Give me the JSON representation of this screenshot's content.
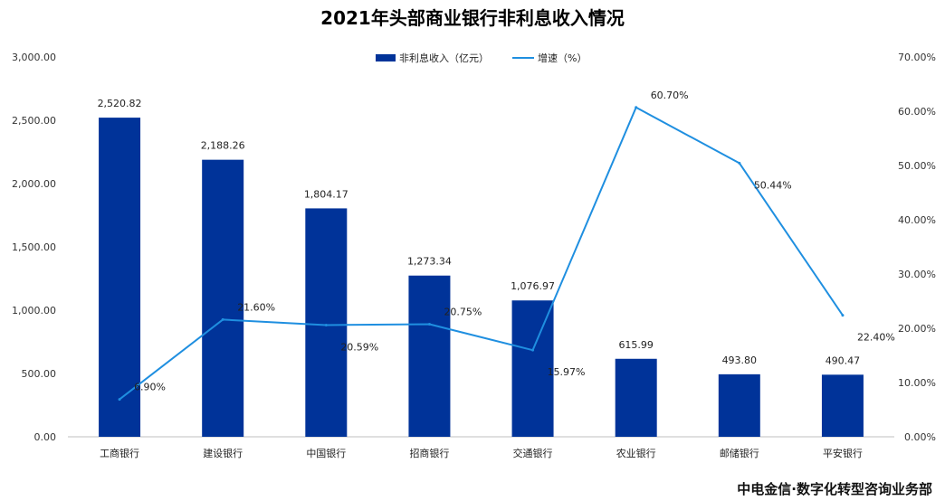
{
  "chart_data": {
    "type": "bar",
    "title": "2021年头部商业银行非利息收入情况",
    "categories": [
      "工商银行",
      "建设银行",
      "中国银行",
      "招商银行",
      "交通银行",
      "农业银行",
      "邮储银行",
      "平安银行"
    ],
    "series": [
      {
        "name": "非利息收入（亿元）",
        "type": "bar",
        "axis": "left",
        "color": "#003399",
        "values": [
          2520.82,
          2188.26,
          1804.17,
          1273.34,
          1076.97,
          615.99,
          493.8,
          490.47
        ],
        "labels": [
          "2,520.82",
          "2,188.26",
          "1,804.17",
          "1,273.34",
          "1,076.97",
          "615.99",
          "493.80",
          "490.47"
        ]
      },
      {
        "name": "增速（%）",
        "type": "line",
        "axis": "right",
        "color": "#1f8fe0",
        "values": [
          6.9,
          21.6,
          20.59,
          20.75,
          15.97,
          60.7,
          50.44,
          22.4
        ],
        "labels": [
          "6.90%",
          "21.60%",
          "20.59%",
          "20.75%",
          "15.97%",
          "60.70%",
          "50.44%",
          "22.40%"
        ]
      }
    ],
    "ylim_left": [
      0,
      3000
    ],
    "yticks_left": [
      "0.00",
      "500.00",
      "1,000.00",
      "1,500.00",
      "2,000.00",
      "2,500.00",
      "3,000.00"
    ],
    "ylim_right": [
      0,
      70
    ],
    "yticks_right": [
      "0.00%",
      "10.00%",
      "20.00%",
      "30.00%",
      "40.00%",
      "50.00%",
      "60.00%",
      "70.00%"
    ],
    "legend_position": "top-center",
    "grid": false
  },
  "source": "中电金信·数字化转型咨询业务部"
}
